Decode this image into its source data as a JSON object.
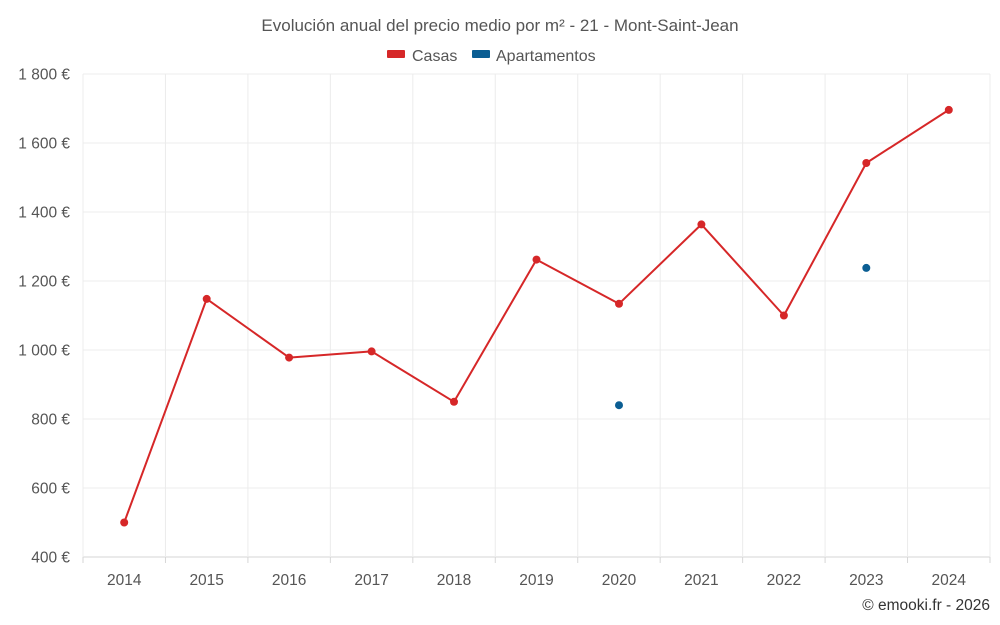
{
  "chart_data": {
    "type": "line",
    "title": "Evolución anual del precio medio por m² - 21 - Mont-Saint-Jean",
    "categories": [
      "2014",
      "2015",
      "2016",
      "2017",
      "2018",
      "2019",
      "2020",
      "2021",
      "2022",
      "2023",
      "2024"
    ],
    "series": [
      {
        "name": "Casas",
        "color": "#d62728",
        "values": [
          500,
          1148,
          978,
          996,
          850,
          1262,
          1134,
          1364,
          1100,
          1542,
          1696
        ]
      },
      {
        "name": "Apartamentos",
        "color": "#0b5e93",
        "values": [
          null,
          null,
          null,
          null,
          null,
          null,
          840,
          null,
          null,
          1238,
          null
        ]
      }
    ],
    "ylim": [
      400,
      1800
    ],
    "yticks": [
      400,
      600,
      800,
      1000,
      1200,
      1400,
      1600,
      1800
    ],
    "ytick_labels": [
      "400 €",
      "600 €",
      "800 €",
      "1 000 €",
      "1 200 €",
      "1 400 €",
      "1 600 €",
      "1 800 €"
    ],
    "xlabel": "",
    "ylabel": "",
    "grid": true,
    "legend": "top-center"
  },
  "credit": "© emooki.fr - 2026"
}
